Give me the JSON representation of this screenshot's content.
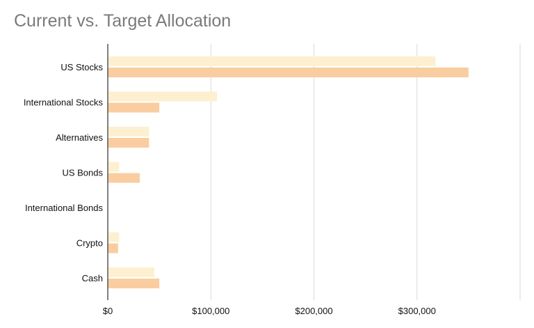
{
  "chart_data": {
    "type": "bar",
    "orientation": "horizontal",
    "title": "Current vs. Target Allocation",
    "categories": [
      "US Stocks",
      "International Stocks",
      "Alternatives",
      "US Bonds",
      "International Bonds",
      "Crypto",
      "Cash"
    ],
    "series": [
      {
        "color": "#fdf0d0",
        "values": [
          318000,
          106000,
          40000,
          11000,
          0,
          11000,
          45000
        ]
      },
      {
        "color": "#f9cda0",
        "values": [
          350000,
          50000,
          40000,
          31000,
          0,
          10000,
          50000
        ]
      }
    ],
    "xlim": [
      0,
      400000
    ],
    "xticks": [
      0,
      100000,
      200000,
      300000
    ],
    "xtick_labels": [
      "$0",
      "$100,000",
      "$200,000",
      "$300,000"
    ],
    "grid": true,
    "legend": "none",
    "axis_color": "#555555",
    "grid_color": "#d9d9d9"
  }
}
